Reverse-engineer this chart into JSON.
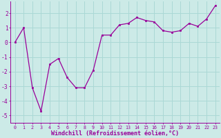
{
  "x": [
    0,
    1,
    2,
    3,
    4,
    5,
    6,
    7,
    8,
    9,
    10,
    11,
    12,
    13,
    14,
    15,
    16,
    17,
    18,
    19,
    20,
    21,
    22,
    23
  ],
  "y": [
    0.0,
    1.0,
    -3.1,
    -4.7,
    -1.5,
    -1.1,
    -2.4,
    -3.1,
    -3.1,
    -1.9,
    0.5,
    0.5,
    1.2,
    1.3,
    1.7,
    1.5,
    1.4,
    0.8,
    0.7,
    0.8,
    1.3,
    1.1,
    1.6,
    2.5
  ],
  "line_color": "#990099",
  "marker": "s",
  "marker_size": 2.0,
  "bg_color": "#cceae7",
  "grid_color": "#aad8d5",
  "xlabel": "Windchill (Refroidissement éolien,°C)",
  "xlabel_fontsize": 6.0,
  "xtick_fontsize": 4.8,
  "ytick_fontsize": 5.8,
  "ylim": [
    -5.5,
    2.8
  ],
  "xlim": [
    -0.5,
    23.5
  ],
  "yticks": [
    -5,
    -4,
    -3,
    -2,
    -1,
    0,
    1,
    2
  ],
  "xticks": [
    0,
    1,
    2,
    3,
    4,
    5,
    6,
    7,
    8,
    9,
    10,
    11,
    12,
    13,
    14,
    15,
    16,
    17,
    18,
    19,
    20,
    21,
    22,
    23
  ]
}
